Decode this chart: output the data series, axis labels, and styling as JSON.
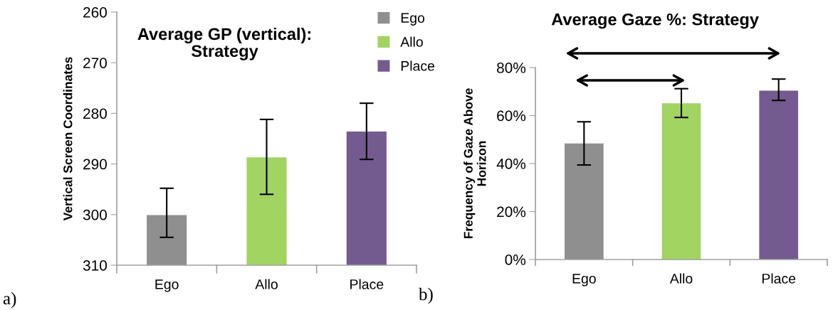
{
  "chart_data": [
    {
      "type": "bar",
      "title": "Average GP (vertical):\nStrategy",
      "ylabel": "Vertical Screen Coordinates",
      "categories": [
        "Ego",
        "Allo",
        "Place"
      ],
      "series": [
        {
          "name": "Ego",
          "color": "#8f8f8f",
          "base": [
            310,
            null,
            null
          ],
          "values": [
            -9.9,
            null,
            null
          ],
          "errors": [
            [
              294.8,
              304.5
            ],
            null,
            null
          ]
        },
        {
          "name": "Allo",
          "color": "#a2d462",
          "base": [
            null,
            310,
            null
          ],
          "values": [
            null,
            -21.3,
            null
          ],
          "errors": [
            null,
            [
              281.2,
              296.0
            ],
            null
          ]
        },
        {
          "name": "Place",
          "color": "#745b8f",
          "base": [
            null,
            null,
            310
          ],
          "values": [
            null,
            null,
            -26.4
          ],
          "errors": [
            null,
            null,
            [
              278.0,
              289.1
            ]
          ]
        }
      ],
      "ylim": [
        310,
        260
      ],
      "yticks": [
        260,
        270,
        280,
        290,
        300,
        310
      ],
      "legend": "top right",
      "grid": false,
      "annotations": [
        "a)"
      ]
    },
    {
      "type": "bar",
      "title": "Average Gaze %: Strategy",
      "ylabel": "Frequency of Gaze Above\nHorizon",
      "categories": [
        "Ego",
        "Allo",
        "Place"
      ],
      "values": [
        48.4,
        65.1,
        70.4
      ],
      "colors": [
        "#8f8f8f",
        "#a2d462",
        "#745b8f"
      ],
      "errors": [
        [
          39.4,
          57.4
        ],
        [
          59.2,
          71.2
        ],
        [
          66.3,
          75.2
        ]
      ],
      "ylim": [
        0,
        80
      ],
      "yticks": [
        {
          "value": 0,
          "label": "0%"
        },
        {
          "value": 20,
          "label": "20%"
        },
        {
          "value": 40,
          "label": "40%"
        },
        {
          "value": 60,
          "label": "60%"
        },
        {
          "value": 80,
          "label": "80%"
        }
      ],
      "grid": false,
      "annotations": [
        "b)"
      ]
    }
  ]
}
